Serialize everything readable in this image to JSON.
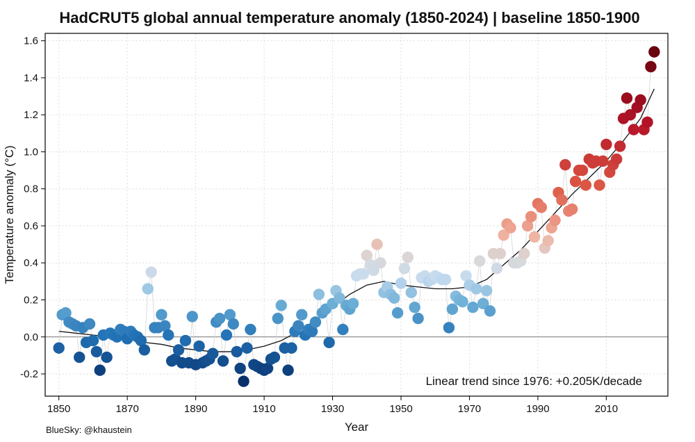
{
  "chart_data": {
    "type": "scatter",
    "title": "HadCRUT5 global annual temperature anomaly (1850-2024) | baseline 1850-1900",
    "xlabel": "Year",
    "ylabel": "Temperature anomaly (°C)",
    "xlim": [
      1846,
      2028
    ],
    "ylim": [
      -0.32,
      1.64
    ],
    "xticks": [
      1850,
      1870,
      1890,
      1910,
      1930,
      1950,
      1970,
      1990,
      2010
    ],
    "yticks": [
      -0.2,
      0.0,
      0.2,
      0.4,
      0.6,
      0.8,
      1.0,
      1.2,
      1.4,
      1.6
    ],
    "ytick_labels": [
      "-0.2",
      "0.0",
      "0.2",
      "0.4",
      "0.6",
      "0.8",
      "1.0",
      "1.2",
      "1.4",
      "1.6"
    ],
    "grid": true,
    "zero_line": 0.0,
    "annotation": "Linear trend since 1976: +0.205K/decade",
    "credit": "BlueSky: @khaustein",
    "color_scale": {
      "min": -0.2,
      "mid": 0.4,
      "max": 1.6,
      "low_color": "#08306b",
      "mid_color": "#d9d9d9",
      "high_color": "#67000d"
    },
    "series": [
      {
        "name": "Annual anomaly",
        "x": [
          1850,
          1851,
          1852,
          1853,
          1854,
          1855,
          1856,
          1857,
          1858,
          1859,
          1860,
          1861,
          1862,
          1863,
          1864,
          1865,
          1866,
          1867,
          1868,
          1869,
          1870,
          1871,
          1872,
          1873,
          1874,
          1875,
          1876,
          1877,
          1878,
          1879,
          1880,
          1881,
          1882,
          1883,
          1884,
          1885,
          1886,
          1887,
          1888,
          1889,
          1890,
          1891,
          1892,
          1893,
          1894,
          1895,
          1896,
          1897,
          1898,
          1899,
          1900,
          1901,
          1902,
          1903,
          1904,
          1905,
          1906,
          1907,
          1908,
          1909,
          1910,
          1911,
          1912,
          1913,
          1914,
          1915,
          1916,
          1917,
          1918,
          1919,
          1920,
          1921,
          1922,
          1923,
          1924,
          1925,
          1926,
          1927,
          1928,
          1929,
          1930,
          1931,
          1932,
          1933,
          1934,
          1935,
          1936,
          1937,
          1938,
          1939,
          1940,
          1941,
          1942,
          1943,
          1944,
          1945,
          1946,
          1947,
          1948,
          1949,
          1950,
          1951,
          1952,
          1953,
          1954,
          1955,
          1956,
          1957,
          1958,
          1959,
          1960,
          1961,
          1962,
          1963,
          1964,
          1965,
          1966,
          1967,
          1968,
          1969,
          1970,
          1971,
          1972,
          1973,
          1974,
          1975,
          1976,
          1977,
          1978,
          1979,
          1980,
          1981,
          1982,
          1983,
          1984,
          1985,
          1986,
          1987,
          1988,
          1989,
          1990,
          1991,
          1992,
          1993,
          1994,
          1995,
          1996,
          1997,
          1998,
          1999,
          2000,
          2001,
          2002,
          2003,
          2004,
          2005,
          2006,
          2007,
          2008,
          2009,
          2010,
          2011,
          2012,
          2013,
          2014,
          2015,
          2016,
          2017,
          2018,
          2019,
          2020,
          2021,
          2022,
          2023,
          2024
        ],
        "y": [
          -0.06,
          0.12,
          0.13,
          0.08,
          0.07,
          0.06,
          -0.11,
          0.05,
          -0.03,
          0.07,
          -0.02,
          -0.08,
          -0.18,
          0.01,
          -0.11,
          0.02,
          0.01,
          0.0,
          0.04,
          0.03,
          -0.01,
          0.03,
          0.01,
          0.0,
          -0.02,
          -0.07,
          0.26,
          0.35,
          0.05,
          0.05,
          0.12,
          0.06,
          0.01,
          -0.13,
          -0.12,
          -0.07,
          -0.14,
          -0.02,
          -0.14,
          0.11,
          -0.15,
          -0.05,
          -0.14,
          -0.13,
          -0.12,
          -0.09,
          0.08,
          0.1,
          -0.13,
          0.01,
          0.12,
          0.07,
          -0.08,
          -0.17,
          -0.24,
          -0.06,
          0.04,
          -0.15,
          -0.16,
          -0.17,
          -0.18,
          -0.17,
          -0.12,
          -0.11,
          0.1,
          0.17,
          -0.06,
          -0.18,
          -0.06,
          0.03,
          0.06,
          0.12,
          0.01,
          0.04,
          0.03,
          0.08,
          0.23,
          0.13,
          0.15,
          -0.03,
          0.18,
          0.25,
          0.21,
          0.04,
          0.17,
          0.15,
          0.18,
          0.33,
          0.34,
          0.34,
          0.44,
          0.39,
          0.36,
          0.5,
          0.4,
          0.24,
          0.27,
          0.23,
          0.21,
          0.13,
          0.29,
          0.37,
          0.43,
          0.24,
          0.16,
          0.1,
          0.32,
          0.33,
          0.3,
          0.31,
          0.33,
          0.32,
          0.31,
          0.31,
          0.05,
          0.15,
          0.22,
          0.2,
          0.19,
          0.33,
          0.28,
          0.16,
          0.26,
          0.41,
          0.18,
          0.25,
          0.14,
          0.45,
          0.37,
          0.45,
          0.55,
          0.61,
          0.59,
          0.4,
          0.4,
          0.41,
          0.45,
          0.6,
          0.65,
          0.54,
          0.72,
          0.7,
          0.48,
          0.52,
          0.59,
          0.63,
          0.78,
          0.74,
          0.93,
          0.68,
          0.69,
          0.84,
          0.9,
          0.9,
          0.82,
          0.96,
          0.94,
          0.95,
          0.82,
          0.95,
          1.04,
          0.89,
          0.93,
          0.96,
          1.03,
          1.18,
          1.29,
          1.2,
          1.12,
          1.24,
          1.28,
          1.12,
          1.16,
          1.46,
          1.54
        ]
      },
      {
        "name": "Smoothed fit",
        "x": [
          1850,
          1855,
          1860,
          1865,
          1870,
          1875,
          1880,
          1885,
          1890,
          1895,
          1900,
          1905,
          1910,
          1915,
          1920,
          1925,
          1930,
          1935,
          1940,
          1945,
          1950,
          1955,
          1960,
          1965,
          1970,
          1975,
          1980,
          1985,
          1990,
          1995,
          2000,
          2005,
          2010,
          2015,
          2020,
          2024
        ],
        "y": [
          0.03,
          0.02,
          0.01,
          0.0,
          -0.01,
          -0.03,
          -0.04,
          -0.06,
          -0.07,
          -0.08,
          -0.08,
          -0.07,
          -0.05,
          -0.02,
          0.03,
          0.09,
          0.16,
          0.23,
          0.28,
          0.3,
          0.28,
          0.27,
          0.26,
          0.26,
          0.27,
          0.31,
          0.39,
          0.47,
          0.57,
          0.67,
          0.77,
          0.86,
          0.95,
          1.06,
          1.18,
          1.34
        ]
      }
    ]
  }
}
